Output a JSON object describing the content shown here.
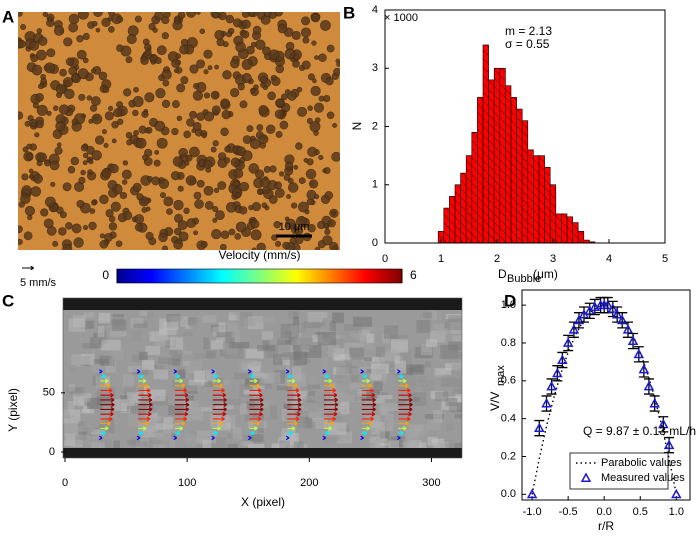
{
  "panel_labels": [
    "A",
    "B",
    "C",
    "D"
  ],
  "panel_a": {
    "scale_bar": "10 μm"
  },
  "chart_data": [
    {
      "type": "histogram",
      "y_label": "N",
      "y_multiplier": "× 1000",
      "x_label": "D",
      "x_label_sub": "Bubble",
      "x_label_unit": "(μm)",
      "annotations": [
        "m = 2.13",
        "σ = 0.55"
      ],
      "color": "#ff0000",
      "bins": [
        0.95,
        1.05,
        1.15,
        1.25,
        1.35,
        1.45,
        1.55,
        1.65,
        1.75,
        1.85,
        1.95,
        2.05,
        2.15,
        2.25,
        2.35,
        2.45,
        2.55,
        2.65,
        2.75,
        2.85,
        2.95,
        3.05,
        3.15,
        3.25,
        3.35,
        3.45,
        3.55,
        3.65,
        3.75
      ],
      "values": [
        0.2,
        0.6,
        0.8,
        1.0,
        1.2,
        1.5,
        1.9,
        2.5,
        3.4,
        2.8,
        3.0,
        3.0,
        2.7,
        2.5,
        2.3,
        2.1,
        1.6,
        1.5,
        1.5,
        1.3,
        1.0,
        0.5,
        0.5,
        0.45,
        0.35,
        0.2,
        0.05,
        0.02
      ],
      "xlim": [
        0,
        5
      ],
      "xticks": [
        0,
        1,
        2,
        3,
        4,
        5
      ],
      "ylim": [
        0,
        4
      ],
      "yticks": [
        0,
        1,
        2,
        3,
        4
      ]
    },
    {
      "type": "quiver",
      "title": "Velocity (mm/s)",
      "colorbar_ticks": [
        0,
        6
      ],
      "reference_label": "5 mm/s",
      "reference_value": 5,
      "x_label": "X (pixel)",
      "y_label": "Y (pixel)",
      "xlim": [
        0,
        325
      ],
      "xticks": [
        0,
        100,
        200,
        300
      ],
      "ylim": [
        -5,
        130
      ],
      "yticks": [
        0,
        50
      ],
      "profile_x": [
        29,
        60,
        90,
        121,
        151,
        182,
        212,
        243,
        273
      ],
      "arrow_y": [
        12,
        16,
        20,
        24,
        28,
        32,
        36,
        40,
        44,
        48,
        52,
        56,
        60,
        64,
        68
      ],
      "velocity": [
        0.77,
        2.16,
        3.33,
        4.29,
        5.04,
        5.57,
        5.89,
        6.0,
        5.89,
        5.57,
        5.04,
        4.29,
        3.33,
        2.16,
        0.77
      ]
    },
    {
      "type": "scatter",
      "x_label": "r/R",
      "y_label": "V/V",
      "y_label_sub": "max",
      "annotation": "Q = 9.87 ± 0.13 mL/h",
      "xlim": [
        -1.14,
        1.19
      ],
      "xticks": [
        {
          "value": -1,
          "label": "-1.0"
        },
        {
          "value": -0.5,
          "label": "-0.5"
        },
        {
          "value": 0,
          "label": "0.0"
        },
        {
          "value": 0.5,
          "label": "0.5"
        },
        {
          "value": 1,
          "label": "1.0"
        }
      ],
      "ylim": [
        -0.03,
        1.08
      ],
      "yticks": [
        {
          "value": 0,
          "label": "0.0"
        },
        {
          "value": 0.2,
          "label": "0.2"
        },
        {
          "value": 0.4,
          "label": "0.4"
        },
        {
          "value": 0.6,
          "label": "0.6"
        },
        {
          "value": 0.8,
          "label": "0.8"
        },
        {
          "value": 1,
          "label": "1.0"
        }
      ],
      "series": [
        {
          "name": "Parabolic values",
          "color": "#000000",
          "style": "dotted",
          "x": [
            -1,
            -0.9,
            -0.8,
            -0.7,
            -0.6,
            -0.5,
            -0.4,
            -0.3,
            -0.2,
            -0.1,
            0,
            0.1,
            0.2,
            0.3,
            0.4,
            0.5,
            0.6,
            0.7,
            0.8,
            0.9,
            1
          ],
          "values": [
            0,
            0.19,
            0.36,
            0.51,
            0.64,
            0.75,
            0.84,
            0.91,
            0.96,
            0.99,
            1,
            0.99,
            0.96,
            0.91,
            0.84,
            0.75,
            0.64,
            0.51,
            0.36,
            0.19,
            0
          ]
        },
        {
          "name": "Measured values",
          "color": "#1a1ad6",
          "style": "triangle",
          "x": [
            -1,
            -0.9,
            -0.8,
            -0.73,
            -0.65,
            -0.58,
            -0.5,
            -0.42,
            -0.35,
            -0.28,
            -0.2,
            -0.13,
            -0.05,
            0,
            0.05,
            0.12,
            0.18,
            0.25,
            0.33,
            0.4,
            0.48,
            0.55,
            0.62,
            0.7,
            0.82,
            0.9,
            1
          ],
          "values": [
            0,
            0.35,
            0.48,
            0.57,
            0.64,
            0.71,
            0.8,
            0.87,
            0.92,
            0.95,
            0.97,
            0.99,
            1,
            1,
            1,
            0.98,
            0.95,
            0.92,
            0.87,
            0.81,
            0.74,
            0.66,
            0.57,
            0.48,
            0.37,
            0.26,
            0
          ],
          "errors": [
            0,
            0.04,
            0.04,
            0.04,
            0.04,
            0.04,
            0.04,
            0.04,
            0.04,
            0.04,
            0.04,
            0.04,
            0.04,
            0.04,
            0.04,
            0.04,
            0.04,
            0.04,
            0.04,
            0.04,
            0.04,
            0.04,
            0.04,
            0.04,
            0.04,
            0.04,
            0
          ]
        }
      ]
    }
  ]
}
